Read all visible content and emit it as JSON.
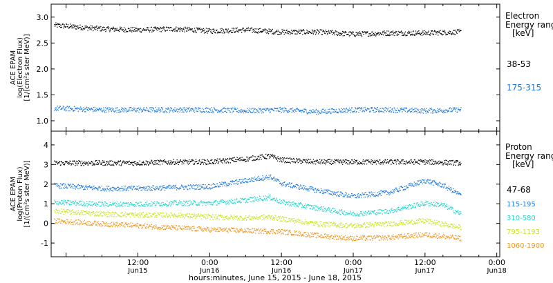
{
  "xaxis": {
    "ticks": [
      {
        "t": 12,
        "time": "12:00",
        "date": "Jun15"
      },
      {
        "t": 24,
        "time": "0:00",
        "date": "Jun16"
      },
      {
        "t": 36,
        "time": "12:00",
        "date": "Jun16"
      },
      {
        "t": 48,
        "time": "0:00",
        "date": "Jun17"
      },
      {
        "t": 60,
        "time": "12:00",
        "date": "Jun17"
      },
      {
        "t": 72,
        "time": "0:00",
        "date": "Jun18"
      }
    ],
    "label": "hours:minutes, June 15, 2015 - June 18, 2015",
    "range_hours_from_jun15_0000": [
      -2.5,
      72.5
    ]
  },
  "panels": {
    "electron": {
      "ylabel_lines": [
        "ACE EPAM",
        "log(Electron Flux)",
        "[1/(cm²s ster MeV)]"
      ],
      "legend_title": [
        "Electron",
        "Energy ranges",
        "[keV]"
      ]
    },
    "proton": {
      "ylabel_lines": [
        "ACE EPAM",
        "log(Proton Flux)",
        "[1/(cm²s ster MeV)]"
      ],
      "legend_title": [
        "Proton",
        "Energy ranges",
        "[keV]"
      ]
    }
  },
  "chart_data": [
    {
      "type": "scatter",
      "ylim": [
        0.8,
        3.25
      ],
      "yticks": [
        "1.0",
        "1.5",
        "2.0",
        "2.5",
        "3.0"
      ],
      "series": [
        {
          "name": "38-53",
          "color": "#000000",
          "x": [
            -2,
            6,
            12,
            18,
            24,
            30,
            36,
            42,
            48,
            54,
            60,
            66
          ],
          "values": [
            2.85,
            2.78,
            2.76,
            2.78,
            2.74,
            2.76,
            2.72,
            2.72,
            2.68,
            2.7,
            2.7,
            2.72
          ]
        },
        {
          "name": "175-315",
          "color": "#1e78dc",
          "x": [
            -2,
            6,
            12,
            18,
            24,
            30,
            36,
            42,
            48,
            54,
            60,
            66
          ],
          "values": [
            1.25,
            1.22,
            1.22,
            1.22,
            1.22,
            1.2,
            1.22,
            1.18,
            1.22,
            1.22,
            1.2,
            1.22
          ]
        }
      ]
    },
    {
      "type": "scatter",
      "ylim": [
        -1.7,
        4.7
      ],
      "yticks": [
        "-1",
        "0",
        "1",
        "2",
        "3",
        "4"
      ],
      "series": [
        {
          "name": "47-68",
          "color": "#000000",
          "x": [
            -2,
            6,
            12,
            18,
            24,
            30,
            34,
            36,
            42,
            48,
            54,
            60,
            66
          ],
          "values": [
            3.1,
            3.1,
            3.1,
            3.15,
            3.15,
            3.3,
            3.45,
            3.25,
            3.15,
            3.15,
            3.15,
            3.15,
            3.1
          ]
        },
        {
          "name": "115-195",
          "color": "#1e78dc",
          "x": [
            -2,
            6,
            12,
            18,
            24,
            30,
            34,
            36,
            42,
            48,
            54,
            60,
            63,
            66
          ],
          "values": [
            1.95,
            1.8,
            1.8,
            1.85,
            1.9,
            2.2,
            2.4,
            2.05,
            1.7,
            1.4,
            1.6,
            2.2,
            1.95,
            1.45
          ]
        },
        {
          "name": "310-580",
          "color": "#22d6cc",
          "x": [
            -2,
            6,
            12,
            18,
            24,
            30,
            34,
            36,
            42,
            48,
            54,
            60,
            63,
            66
          ],
          "values": [
            1.1,
            1.0,
            1.0,
            1.05,
            1.05,
            1.2,
            1.35,
            1.1,
            0.8,
            0.5,
            0.65,
            1.05,
            0.95,
            0.5
          ]
        },
        {
          "name": "795-1193",
          "color": "#c8e61e",
          "x": [
            -2,
            6,
            12,
            18,
            24,
            30,
            34,
            36,
            42,
            48,
            54,
            60,
            66
          ],
          "values": [
            0.65,
            0.5,
            0.45,
            0.45,
            0.35,
            0.3,
            0.35,
            0.25,
            0.0,
            -0.1,
            0.0,
            0.15,
            -0.2
          ]
        },
        {
          "name": "1060-1900",
          "color": "#f0961e",
          "x": [
            -2,
            6,
            12,
            18,
            24,
            30,
            36,
            42,
            48,
            54,
            60,
            66
          ],
          "values": [
            0.15,
            0.0,
            -0.1,
            -0.2,
            -0.3,
            -0.35,
            -0.4,
            -0.6,
            -0.75,
            -0.7,
            -0.55,
            -0.75
          ]
        }
      ]
    }
  ]
}
